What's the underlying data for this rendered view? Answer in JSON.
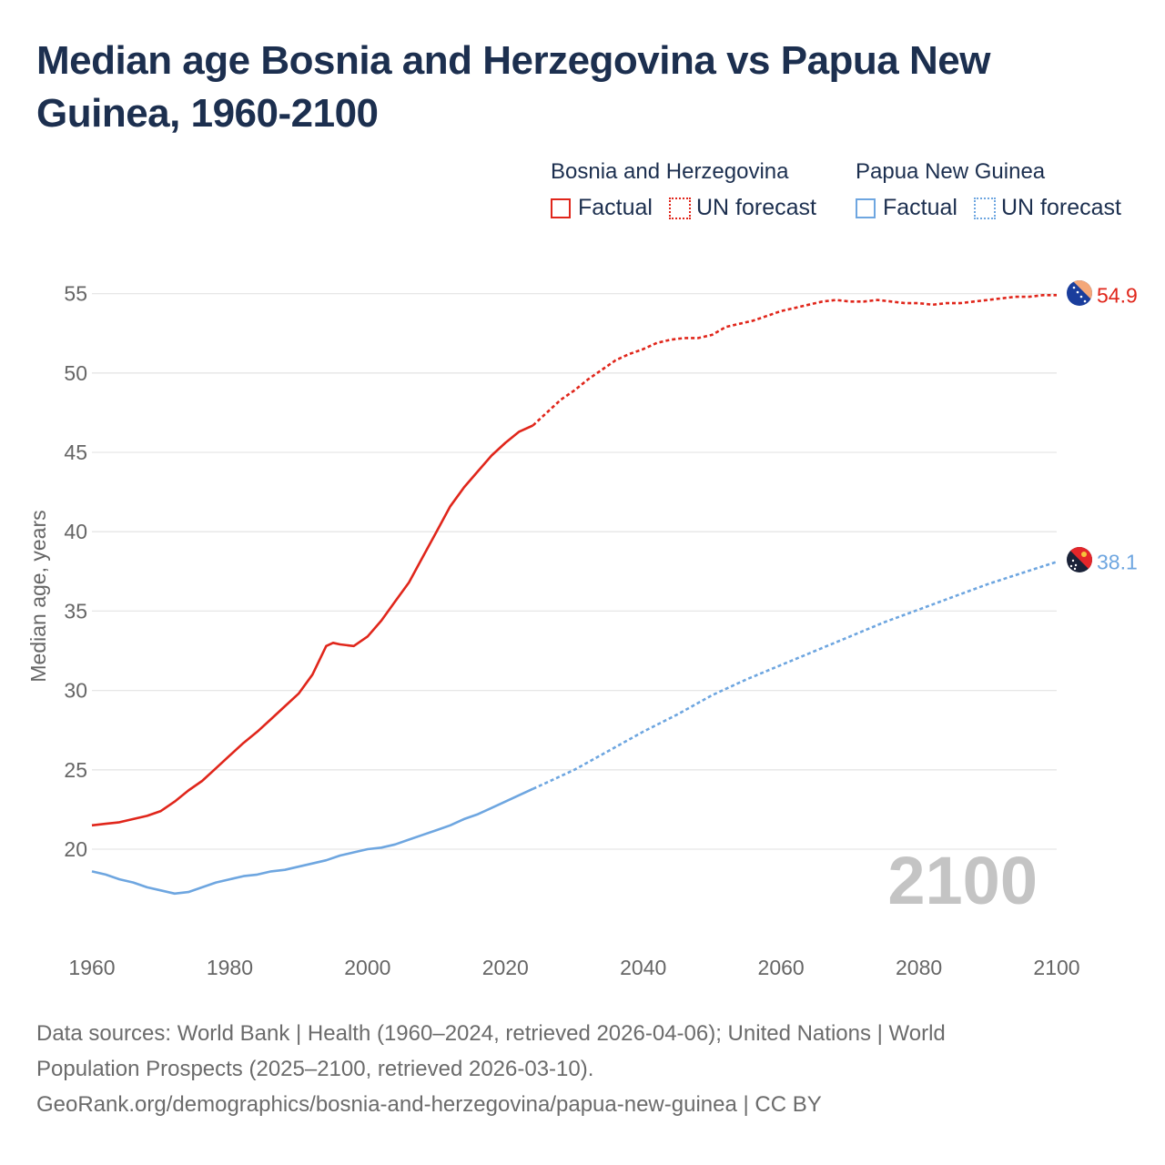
{
  "title": "Median age Bosnia and Herzegovina vs Papua New Guinea, 1960-2100",
  "legend": {
    "groups": [
      {
        "name": "Bosnia and Herzegovina",
        "color": "#e0261b",
        "items": [
          {
            "label": "Factual",
            "style": "solid"
          },
          {
            "label": "UN forecast",
            "style": "dotted"
          }
        ]
      },
      {
        "name": "Papua New Guinea",
        "color": "#6ea6e0",
        "items": [
          {
            "label": "Factual",
            "style": "solid"
          },
          {
            "label": "UN forecast",
            "style": "dotted"
          }
        ]
      }
    ]
  },
  "chart_data": {
    "type": "line",
    "title": "Median age Bosnia and Herzegovina vs Papua New Guinea, 1960-2100",
    "xlabel": "",
    "ylabel": "Median age, years",
    "xlim": [
      1960,
      2100
    ],
    "ylim": [
      15,
      57
    ],
    "xticks": [
      1960,
      1980,
      2000,
      2020,
      2040,
      2060,
      2080,
      2100
    ],
    "yticks": [
      20,
      25,
      30,
      35,
      40,
      45,
      50,
      55
    ],
    "grid": true,
    "year_watermark": "2100",
    "forecast_start": 2024,
    "series": [
      {
        "name": "Bosnia and Herzegovina",
        "color": "#e0261b",
        "end_label": "54.9",
        "x": [
          1960,
          1962,
          1964,
          1966,
          1968,
          1970,
          1972,
          1974,
          1976,
          1978,
          1980,
          1982,
          1984,
          1986,
          1988,
          1990,
          1992,
          1994,
          1995,
          1996,
          1998,
          2000,
          2002,
          2004,
          2006,
          2008,
          2010,
          2012,
          2014,
          2016,
          2018,
          2020,
          2022,
          2024,
          2026,
          2028,
          2030,
          2032,
          2034,
          2036,
          2038,
          2040,
          2042,
          2044,
          2046,
          2048,
          2050,
          2052,
          2054,
          2056,
          2058,
          2060,
          2062,
          2064,
          2066,
          2068,
          2070,
          2072,
          2074,
          2076,
          2078,
          2080,
          2082,
          2084,
          2086,
          2088,
          2090,
          2092,
          2094,
          2096,
          2098,
          2100
        ],
        "values": [
          21.5,
          21.6,
          21.7,
          21.9,
          22.1,
          22.4,
          23.0,
          23.7,
          24.3,
          25.1,
          25.9,
          26.7,
          27.4,
          28.2,
          29.0,
          29.8,
          31.0,
          32.8,
          33.0,
          32.9,
          32.8,
          33.4,
          34.4,
          35.6,
          36.8,
          38.4,
          40.0,
          41.6,
          42.8,
          43.8,
          44.8,
          45.6,
          46.3,
          46.7,
          47.5,
          48.3,
          48.9,
          49.6,
          50.2,
          50.8,
          51.2,
          51.5,
          51.9,
          52.1,
          52.2,
          52.2,
          52.4,
          52.9,
          53.1,
          53.3,
          53.6,
          53.9,
          54.1,
          54.3,
          54.5,
          54.6,
          54.5,
          54.5,
          54.6,
          54.5,
          54.4,
          54.4,
          54.3,
          54.4,
          54.4,
          54.5,
          54.6,
          54.7,
          54.8,
          54.8,
          54.9,
          54.9
        ]
      },
      {
        "name": "Papua New Guinea",
        "color": "#6ea6e0",
        "end_label": "38.1",
        "x": [
          1960,
          1962,
          1964,
          1966,
          1968,
          1970,
          1972,
          1974,
          1976,
          1978,
          1980,
          1982,
          1984,
          1986,
          1988,
          1990,
          1992,
          1994,
          1996,
          1998,
          2000,
          2002,
          2004,
          2006,
          2008,
          2010,
          2012,
          2014,
          2016,
          2018,
          2020,
          2022,
          2024,
          2026,
          2028,
          2030,
          2035,
          2040,
          2045,
          2050,
          2055,
          2060,
          2065,
          2070,
          2075,
          2080,
          2085,
          2090,
          2095,
          2100
        ],
        "values": [
          18.6,
          18.4,
          18.1,
          17.9,
          17.6,
          17.4,
          17.2,
          17.3,
          17.6,
          17.9,
          18.1,
          18.3,
          18.4,
          18.6,
          18.7,
          18.9,
          19.1,
          19.3,
          19.6,
          19.8,
          20.0,
          20.1,
          20.3,
          20.6,
          20.9,
          21.2,
          21.5,
          21.9,
          22.2,
          22.6,
          23.0,
          23.4,
          23.8,
          24.2,
          24.6,
          25.0,
          26.2,
          27.4,
          28.5,
          29.7,
          30.7,
          31.6,
          32.5,
          33.4,
          34.3,
          35.1,
          35.9,
          36.7,
          37.4,
          38.1
        ]
      }
    ]
  },
  "footer": {
    "line1": "Data sources: World Bank | Health (1960–2024, retrieved 2026-04-06); United Nations | World",
    "line2": "Population Prospects (2025–2100, retrieved 2026-03-10).",
    "line3": "GeoRank.org/demographics/bosnia-and-herzegovina/papua-new-guinea | CC BY"
  }
}
